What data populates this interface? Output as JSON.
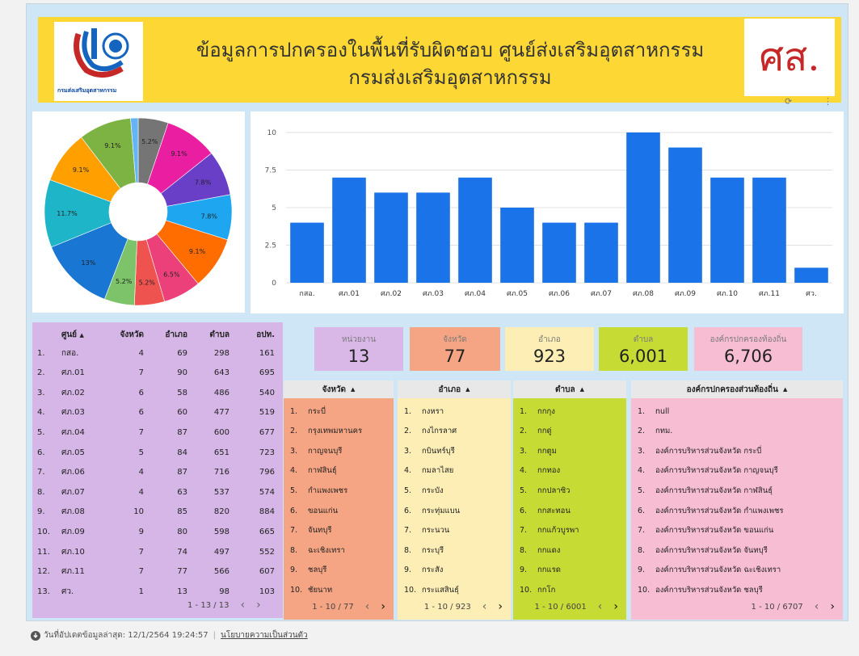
{
  "header": {
    "title_line1": "ข้อมูลการปกครองในพื้นที่รับผิดชอบ ศูนย์ส่งเสริมอุตสาหกรรม",
    "title_line2": "กรมส่งเสริมอุตสาหกรรม",
    "logo_text": "กรมส่งเสริมอุตสาหกรรม",
    "brand_mark": "ศส.",
    "icon_refresh": "refresh-icon",
    "icon_menu": "more-vert-icon"
  },
  "chart_data": [
    {
      "type": "pie",
      "donut": true,
      "slices": [
        {
          "value": 5.2,
          "label": "5.2%",
          "color": "#757575"
        },
        {
          "value": 9.1,
          "label": "9.1%",
          "color": "#e91ea0"
        },
        {
          "value": 7.8,
          "label": "7.8%",
          "color": "#6a3fc8"
        },
        {
          "value": 7.8,
          "label": "7.8%",
          "color": "#1ea7f0"
        },
        {
          "value": 9.1,
          "label": "9.1%",
          "color": "#ff6d00"
        },
        {
          "value": 6.5,
          "label": "6.5%",
          "color": "#ec407a"
        },
        {
          "value": 5.2,
          "label": "5.2%",
          "color": "#ef5350"
        },
        {
          "value": 5.2,
          "label": "5.2%",
          "color": "#7cc36a"
        },
        {
          "value": 13,
          "label": "13%",
          "color": "#1976d2"
        },
        {
          "value": 11.7,
          "label": "11.7%",
          "color": "#1fb5c8"
        },
        {
          "value": 9.1,
          "label": "9.1%",
          "color": "#ffa000"
        },
        {
          "value": 9.1,
          "label": "9.1%",
          "color": "#7cb342"
        },
        {
          "value": 1.3,
          "label": "",
          "color": "#64b5f6"
        }
      ]
    },
    {
      "type": "bar",
      "categories": [
        "กสอ.",
        "ศภ.01",
        "ศภ.02",
        "ศภ.03",
        "ศภ.04",
        "ศภ.05",
        "ศภ.06",
        "ศภ.07",
        "ศภ.08",
        "ศภ.09",
        "ศภ.10",
        "ศภ.11",
        "ศว."
      ],
      "values": [
        4,
        7,
        6,
        6,
        7,
        5,
        4,
        4,
        10,
        9,
        7,
        7,
        1
      ],
      "ylim": [
        0,
        10
      ],
      "yticks": [
        "0",
        "2.5",
        "5",
        "7.5",
        "10"
      ],
      "color": "#1a73e8",
      "grid": true
    }
  ],
  "center_table": {
    "headers": [
      "ศูนย์",
      "จังหวัด",
      "อำเภอ",
      "ตำบล",
      "อปท."
    ],
    "rows": [
      [
        "1.",
        "กสอ.",
        "4",
        "69",
        "298",
        "161"
      ],
      [
        "2.",
        "ศภ.01",
        "7",
        "90",
        "643",
        "695"
      ],
      [
        "3.",
        "ศภ.02",
        "6",
        "58",
        "486",
        "540"
      ],
      [
        "4.",
        "ศภ.03",
        "6",
        "60",
        "477",
        "519"
      ],
      [
        "5.",
        "ศภ.04",
        "7",
        "87",
        "600",
        "677"
      ],
      [
        "6.",
        "ศภ.05",
        "5",
        "84",
        "651",
        "723"
      ],
      [
        "7.",
        "ศภ.06",
        "4",
        "87",
        "716",
        "796"
      ],
      [
        "8.",
        "ศภ.07",
        "4",
        "63",
        "537",
        "574"
      ],
      [
        "9.",
        "ศภ.08",
        "10",
        "85",
        "820",
        "884"
      ],
      [
        "10.",
        "ศภ.09",
        "9",
        "80",
        "598",
        "665"
      ],
      [
        "11.",
        "ศภ.10",
        "7",
        "74",
        "497",
        "552"
      ],
      [
        "12.",
        "ศภ.11",
        "7",
        "77",
        "566",
        "607"
      ],
      [
        "13.",
        "ศว.",
        "1",
        "13",
        "98",
        "103"
      ]
    ],
    "pager": "1 - 13 / 13"
  },
  "kpis": [
    {
      "label": "หน่วยงาน",
      "value": "13",
      "color": "#d9b8e8"
    },
    {
      "label": "จังหวัด",
      "value": "77",
      "color": "#f5a583"
    },
    {
      "label": "อำเภอ",
      "value": "923",
      "color": "#fdeeb5"
    },
    {
      "label": "ตำบล",
      "value": "6,001",
      "color": "#c6dc35"
    },
    {
      "label": "องค์กรปกครองท้องถิ่น",
      "value": "6,706",
      "color": "#f7bdd2"
    }
  ],
  "lists": {
    "province": {
      "header": "จังหวัด",
      "items": [
        "กระบี่",
        "กรุงเทพมหานคร",
        "กาญจนบุรี",
        "กาฬสินธุ์",
        "กำแพงเพชร",
        "ขอนแก่น",
        "จันทบุรี",
        "ฉะเชิงเทรา",
        "ชลบุรี",
        "ชัยนาท"
      ],
      "pager": "1 - 10 / 77"
    },
    "district": {
      "header": "อำเภอ",
      "items": [
        "กงหรา",
        "กงไกรลาศ",
        "กบินทร์บุรี",
        "กมลาไสย",
        "กระบัง",
        "กระทุ่มแบน",
        "กระนวน",
        "กระบุรี",
        "กระสัง",
        "กระแสสินธุ์"
      ],
      "pager": "1 - 10 / 923"
    },
    "subdistrict": {
      "header": "ตำบล",
      "items": [
        "กกกุง",
        "กกดู่",
        "กกตูม",
        "กกทอง",
        "กกปลาซิว",
        "กกสะทอน",
        "กกแก้วบูรพา",
        "กกแดง",
        "กกแรด",
        "กกโก"
      ],
      "pager": "1 - 10 / 6001"
    },
    "local_org": {
      "header": "องค์กรปกครองส่วนท้องถิ่น",
      "items": [
        "null",
        "กทม.",
        "องค์การบริหารส่วนจังหวัด กระบี่",
        "องค์การบริหารส่วนจังหวัด กาญจนบุรี",
        "องค์การบริหารส่วนจังหวัด กาฬสินธุ์",
        "องค์การบริหารส่วนจังหวัด กำแพงเพชร",
        "องค์การบริหารส่วนจังหวัด ขอนแก่น",
        "องค์การบริหารส่วนจังหวัด จันทบุรี",
        "องค์การบริหารส่วนจังหวัด ฉะเชิงเทรา",
        "องค์การบริหารส่วนจังหวัด ชลบุรี"
      ],
      "pager": "1 - 10 / 6707"
    }
  },
  "sort_glyph": "▲",
  "pager_prev": "‹",
  "pager_next": "›",
  "footer": {
    "icon": "download-icon",
    "updated": "วันที่อัปเดตข้อมูลล่าสุด: 12/1/2564 19:24:57",
    "privacy_link": "นโยบายความเป็นส่วนตัว"
  }
}
